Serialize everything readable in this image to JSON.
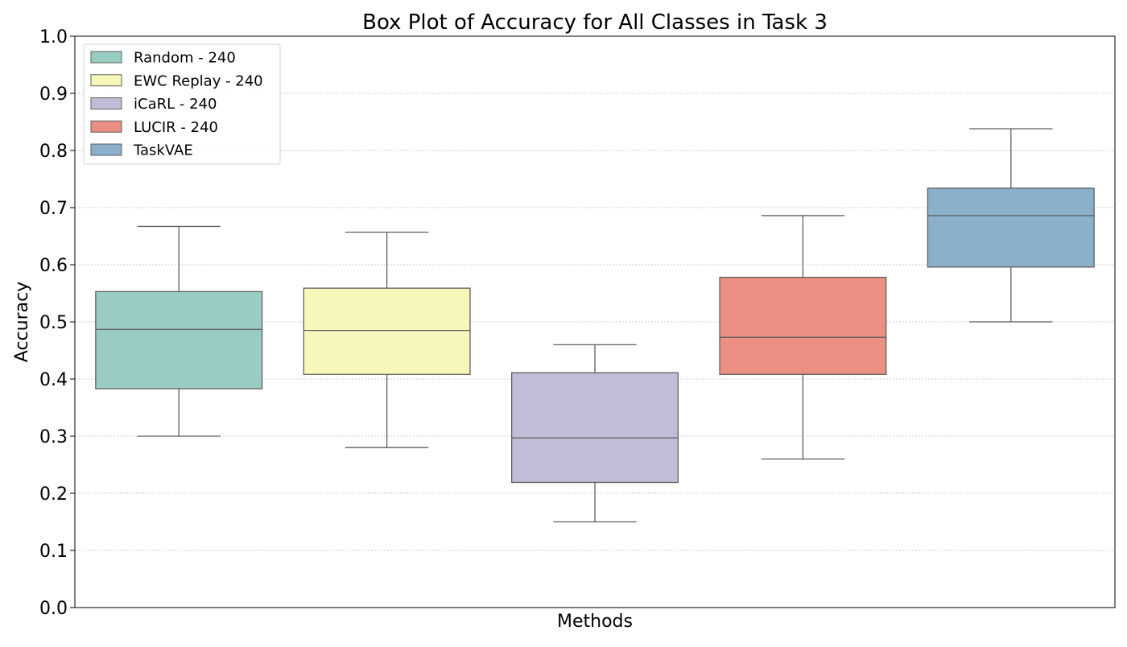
{
  "chart_data": {
    "type": "box",
    "title": "Box Plot of Accuracy for All Classes in Task 3",
    "xlabel": "Methods",
    "ylabel": "Accuracy",
    "ylim": [
      0.0,
      1.0
    ],
    "yticks": [
      "0.0",
      "0.1",
      "0.2",
      "0.3",
      "0.4",
      "0.5",
      "0.6",
      "0.7",
      "0.8",
      "0.9",
      "1.0"
    ],
    "grid": "horizontal-dotted",
    "legend_position": "top-left",
    "series": [
      {
        "name": "Random - 240",
        "color": "#99ccc2",
        "whisker_low": 0.3,
        "q1": 0.383,
        "median": 0.487,
        "q3": 0.553,
        "whisker_high": 0.667
      },
      {
        "name": "EWC Replay - 240",
        "color": "#f7f7bb",
        "whisker_low": 0.28,
        "q1": 0.408,
        "median": 0.485,
        "q3": 0.559,
        "whisker_high": 0.657
      },
      {
        "name": "iCaRL - 240",
        "color": "#c0bdd7",
        "whisker_low": 0.15,
        "q1": 0.219,
        "median": 0.297,
        "q3": 0.411,
        "whisker_high": 0.46
      },
      {
        "name": "LUCIR - 240",
        "color": "#eb8f83",
        "whisker_low": 0.26,
        "q1": 0.408,
        "median": 0.473,
        "q3": 0.578,
        "whisker_high": 0.686
      },
      {
        "name": "TaskVAE",
        "color": "#8bb0cb",
        "whisker_low": 0.5,
        "q1": 0.596,
        "median": 0.686,
        "q3": 0.734,
        "whisker_high": 0.838
      }
    ]
  }
}
